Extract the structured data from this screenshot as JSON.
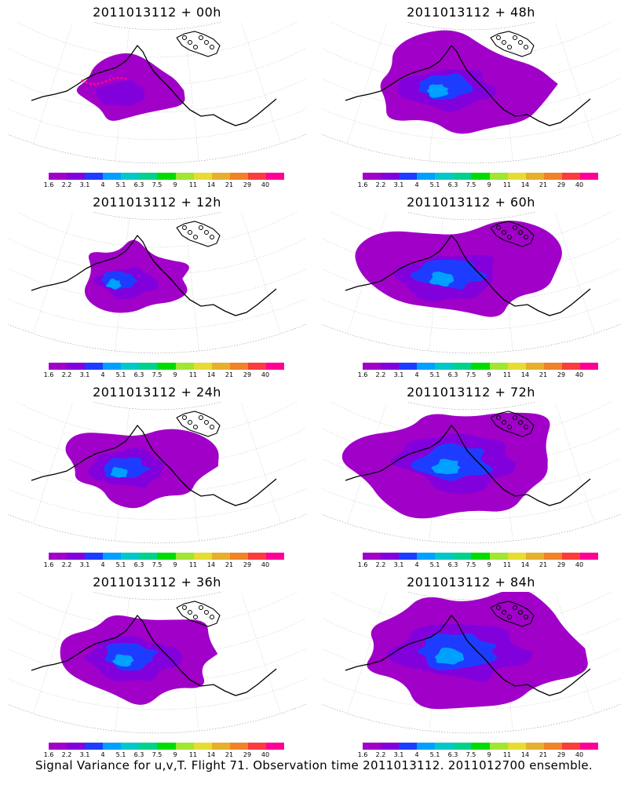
{
  "panels": [
    {
      "title": "2011013112 + 00h",
      "coverage": 0.15
    },
    {
      "title": "2011013112 + 48h",
      "coverage": 0.55
    },
    {
      "title": "2011013112 + 12h",
      "coverage": 0.25
    },
    {
      "title": "2011013112 + 60h",
      "coverage": 0.7
    },
    {
      "title": "2011013112 + 24h",
      "coverage": 0.4
    },
    {
      "title": "2011013112 + 72h",
      "coverage": 0.85
    },
    {
      "title": "2011013112 + 36h",
      "coverage": 0.55
    },
    {
      "title": "2011013112 + 84h",
      "coverage": 0.9
    }
  ],
  "colorbar": {
    "labels": [
      "1.6",
      "2.2",
      "3.1",
      "4",
      "5.1",
      "6.3",
      "7.5",
      "9",
      "11",
      "14",
      "21",
      "29",
      "40"
    ],
    "colors": [
      "#a000c8",
      "#8200dc",
      "#1e3cff",
      "#00a0ff",
      "#00c8c8",
      "#00d28c",
      "#00dc00",
      "#a0e632",
      "#e6dc32",
      "#e6af2d",
      "#f08228",
      "#fa3c3c",
      "#ff0096"
    ]
  },
  "footer": "Signal Variance for u,v,T. Flight 71. Observation time 2011013112. 2011012700 ensemble."
}
